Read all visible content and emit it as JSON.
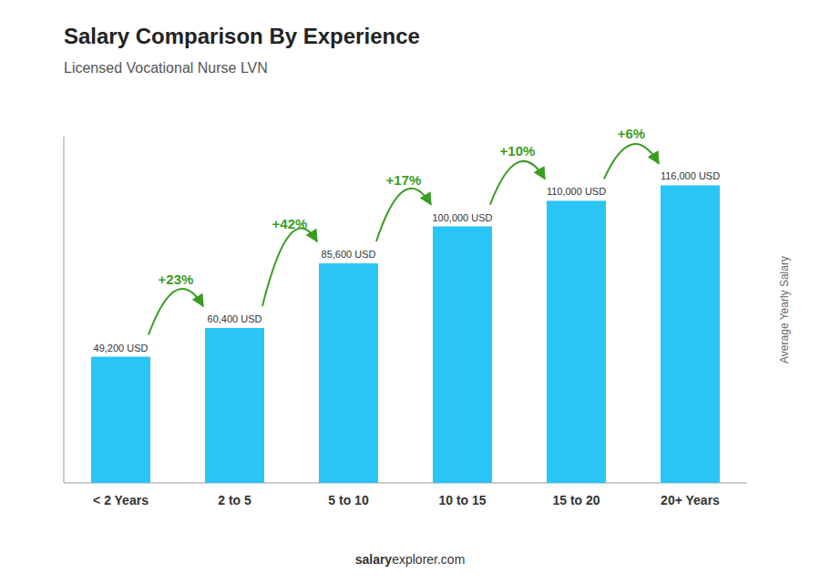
{
  "chart_data": {
    "type": "bar",
    "title": "Salary Comparison By Experience",
    "subtitle": "Licensed Vocational Nurse LVN",
    "ylabel": "Average Yearly Salary",
    "categories": [
      "< 2 Years",
      "2 to 5",
      "5 to 10",
      "10 to 15",
      "15 to 20",
      "20+ Years"
    ],
    "values": [
      49200,
      60400,
      85600,
      100000,
      110000,
      116000
    ],
    "value_labels": [
      "49,200 USD",
      "60,400 USD",
      "85,600 USD",
      "100,000 USD",
      "110,000 USD",
      "116,000 USD"
    ],
    "data_labels": true,
    "annotations": [
      "+23%",
      "+42%",
      "+17%",
      "+10%",
      "+6%"
    ],
    "footer": [
      "salary",
      "explorer.com"
    ],
    "color": "#29c5f6",
    "ylim": [
      0,
      135000
    ],
    "grid": false,
    "tick_labels": "x"
  }
}
